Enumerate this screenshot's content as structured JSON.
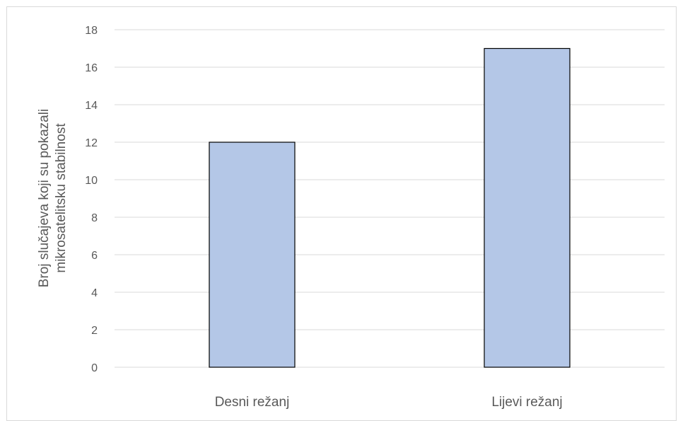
{
  "chart_data": {
    "type": "bar",
    "title": "",
    "xlabel": "",
    "ylabel_lines": [
      "Broj slučajeva koji su pokazali",
      "mikrosatelitsku stabilnost"
    ],
    "categories": [
      "Desni režanj",
      "Lijevi režanj"
    ],
    "values": [
      12,
      17
    ],
    "ylim": [
      0,
      18
    ],
    "yticks": [
      0,
      2,
      4,
      6,
      8,
      10,
      12,
      14,
      16,
      18
    ],
    "grid": true,
    "legend": "none",
    "colors": {
      "bar_fill": "#b4c7e7",
      "bar_stroke": "#000000",
      "gridline": "#d9d9d9",
      "text": "#595959"
    }
  }
}
